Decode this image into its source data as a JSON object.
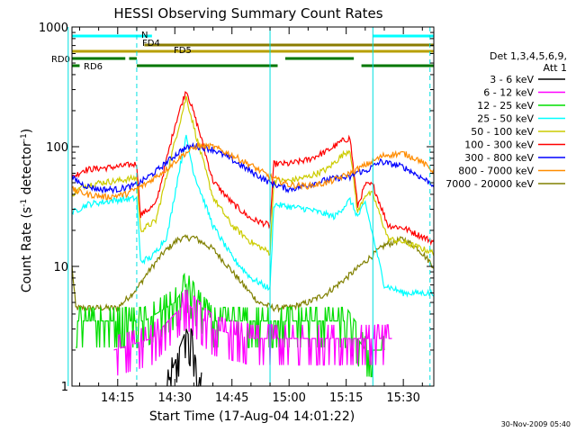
{
  "chart_data": {
    "type": "line",
    "title": "HESSI Observing Summary Count Rates",
    "xlabel": "Start Time (17-Aug-04 14:01:22)",
    "ylabel_main": "Count Rate (s",
    "ylabel_sup1": "-1",
    "ylabel_mid": " detector",
    "ylabel_sup2": "-1",
    "ylabel_end": ")",
    "y_scale": "log",
    "ylim": [
      1,
      1000
    ],
    "xlim": [
      "14:03",
      "15:38"
    ],
    "x_ticks": [
      "14:15",
      "14:30",
      "14:45",
      "15:00",
      "15:15",
      "15:30"
    ],
    "y_ticks": [
      "1",
      "10",
      "100",
      "1000"
    ],
    "timestamp": "30-Nov-2009 05:40",
    "legend": {
      "placement": "right",
      "header_line1": "Det 1,3,4,5,6,9,",
      "header_line2": "Att 1"
    },
    "flags": [
      {
        "label": "N",
        "color": "#00ffff",
        "segments": [
          [
            "14:03",
            "14:24"
          ],
          [
            "15:22",
            "15:38"
          ]
        ]
      },
      {
        "label": "FD4",
        "color": "#8b7d00",
        "segments": [
          [
            "14:22",
            "15:38"
          ]
        ]
      },
      {
        "label": "FD5",
        "color": "#b8a000",
        "segments": [
          [
            "14:03",
            "15:38"
          ]
        ]
      },
      {
        "label": "RD0",
        "color": "#007700",
        "segments": [
          [
            "14:03",
            "14:17"
          ],
          [
            "14:18",
            "14:20"
          ],
          [
            "14:59",
            "15:17"
          ]
        ]
      },
      {
        "label": "RD6",
        "color": "#007700",
        "segments": [
          [
            "14:03",
            "14:05"
          ],
          [
            "14:20",
            "14:57"
          ],
          [
            "15:19",
            "15:38"
          ]
        ]
      }
    ],
    "night_boundaries_dashed": [
      "14:20",
      "15:37"
    ],
    "day_boundaries_solid": [
      "14:02",
      "14:55",
      "15:22"
    ],
    "series": [
      {
        "name": "3 - 6 keV",
        "color": "#000000",
        "style": "flat",
        "x": [
          "14:28",
          "14:31",
          "14:33",
          "14:35",
          "14:37"
        ],
        "y": [
          1,
          2,
          3,
          2,
          1
        ]
      },
      {
        "name": "6 - 12 keV",
        "color": "#ff00ff",
        "style": "flat",
        "x": [
          "14:14",
          "14:24",
          "14:30",
          "14:33",
          "14:40",
          "14:50",
          "15:10",
          "15:20",
          "15:27"
        ],
        "y": [
          2,
          2.5,
          4,
          5,
          3,
          2.5,
          2.5,
          2.5,
          2.5
        ]
      },
      {
        "name": "12 - 25 keV",
        "color": "#00dd00",
        "style": "flat",
        "x": [
          "14:04",
          "14:12",
          "14:22",
          "14:30",
          "14:33",
          "14:36",
          "14:40",
          "14:55",
          "15:05",
          "15:15",
          "15:20",
          "15:25"
        ],
        "y": [
          3.5,
          3.5,
          3.5,
          5,
          7,
          5,
          3.5,
          3.5,
          3.5,
          3.5,
          2,
          2
        ]
      },
      {
        "name": "25 - 50 keV",
        "color": "#00ffff",
        "style": "smooth",
        "x": [
          "14:03",
          "14:07",
          "14:15",
          "14:20",
          "14:21",
          "14:24",
          "14:28",
          "14:31",
          "14:33",
          "14:35",
          "14:40",
          "14:45",
          "14:50",
          "14:55",
          "14:56",
          "15:05",
          "15:12",
          "15:16",
          "15:18",
          "15:20",
          "15:25",
          "15:30",
          "15:38"
        ],
        "y": [
          28,
          33,
          36,
          37,
          11,
          12,
          18,
          60,
          120,
          60,
          22,
          12,
          8,
          6.5,
          33,
          30,
          26,
          36,
          26,
          34,
          7,
          6,
          6
        ]
      },
      {
        "name": "50 - 100 keV",
        "color": "#cccc00",
        "style": "smooth",
        "x": [
          "14:03",
          "14:06",
          "14:10",
          "14:15",
          "14:20",
          "14:21",
          "14:25",
          "14:30",
          "14:33",
          "14:36",
          "14:40",
          "14:45",
          "14:50",
          "14:55",
          "14:56",
          "15:00",
          "15:05",
          "15:10",
          "15:14",
          "15:16",
          "15:18",
          "15:20",
          "15:22",
          "15:26",
          "15:30",
          "15:38"
        ],
        "y": [
          40,
          47,
          50,
          52,
          55,
          20,
          24,
          110,
          260,
          110,
          38,
          22,
          16,
          13,
          52,
          52,
          56,
          65,
          85,
          95,
          28,
          40,
          40,
          17,
          16,
          13
        ]
      },
      {
        "name": "100 - 300 keV",
        "color": "#ff0000",
        "style": "smooth",
        "x": [
          "14:03",
          "14:06",
          "14:10",
          "14:15",
          "14:20",
          "14:21",
          "14:25",
          "14:30",
          "14:33",
          "14:36",
          "14:40",
          "14:45",
          "14:50",
          "14:55",
          "14:56",
          "15:00",
          "15:05",
          "15:10",
          "15:14",
          "15:16",
          "15:18",
          "15:20",
          "15:22",
          "15:26",
          "15:30",
          "15:38"
        ],
        "y": [
          55,
          64,
          66,
          68,
          72,
          27,
          33,
          150,
          300,
          150,
          52,
          34,
          25,
          22,
          72,
          72,
          78,
          92,
          112,
          118,
          32,
          48,
          48,
          22,
          21,
          16
        ]
      },
      {
        "name": "300 - 800 keV",
        "color": "#0000ff",
        "style": "smooth",
        "x": [
          "14:03",
          "14:06",
          "14:10",
          "14:15",
          "14:20",
          "14:25",
          "14:28",
          "14:32",
          "14:35",
          "14:40",
          "14:45",
          "14:50",
          "14:55",
          "15:00",
          "15:05",
          "15:10",
          "15:13",
          "15:16",
          "15:18",
          "15:20",
          "15:24",
          "15:30",
          "15:38"
        ],
        "y": [
          55,
          48,
          44,
          44,
          48,
          62,
          75,
          95,
          102,
          95,
          78,
          62,
          50,
          44,
          48,
          53,
          55,
          55,
          62,
          62,
          75,
          68,
          48
        ]
      },
      {
        "name": "800 - 7000 keV",
        "color": "#ff8c00",
        "style": "smooth",
        "x": [
          "14:03",
          "14:07",
          "14:12",
          "14:17",
          "14:22",
          "14:27",
          "14:32",
          "14:36",
          "14:40",
          "14:45",
          "14:50",
          "14:55",
          "15:00",
          "15:05",
          "15:10",
          "15:15",
          "15:20",
          "15:25",
          "15:30",
          "15:34",
          "15:38"
        ],
        "y": [
          44,
          40,
          38,
          40,
          48,
          62,
          85,
          102,
          100,
          85,
          70,
          56,
          48,
          47,
          50,
          58,
          70,
          85,
          88,
          78,
          62
        ]
      },
      {
        "name": "7000 - 20000 keV",
        "color": "#808000",
        "style": "smooth",
        "x": [
          "14:03",
          "14:04",
          "14:10",
          "14:15",
          "14:20",
          "14:23",
          "14:27",
          "14:31",
          "14:35",
          "14:40",
          "14:44",
          "14:48",
          "14:52",
          "14:56",
          "15:00",
          "15:05",
          "15:10",
          "15:15",
          "15:20",
          "15:25",
          "15:30",
          "15:34",
          "15:38"
        ],
        "y": [
          10,
          4.5,
          4.5,
          4.5,
          6.5,
          9,
          13,
          17,
          17.5,
          14,
          10,
          7,
          5,
          4.5,
          4.5,
          5,
          6,
          8,
          11,
          15,
          17,
          14,
          10
        ]
      }
    ]
  }
}
